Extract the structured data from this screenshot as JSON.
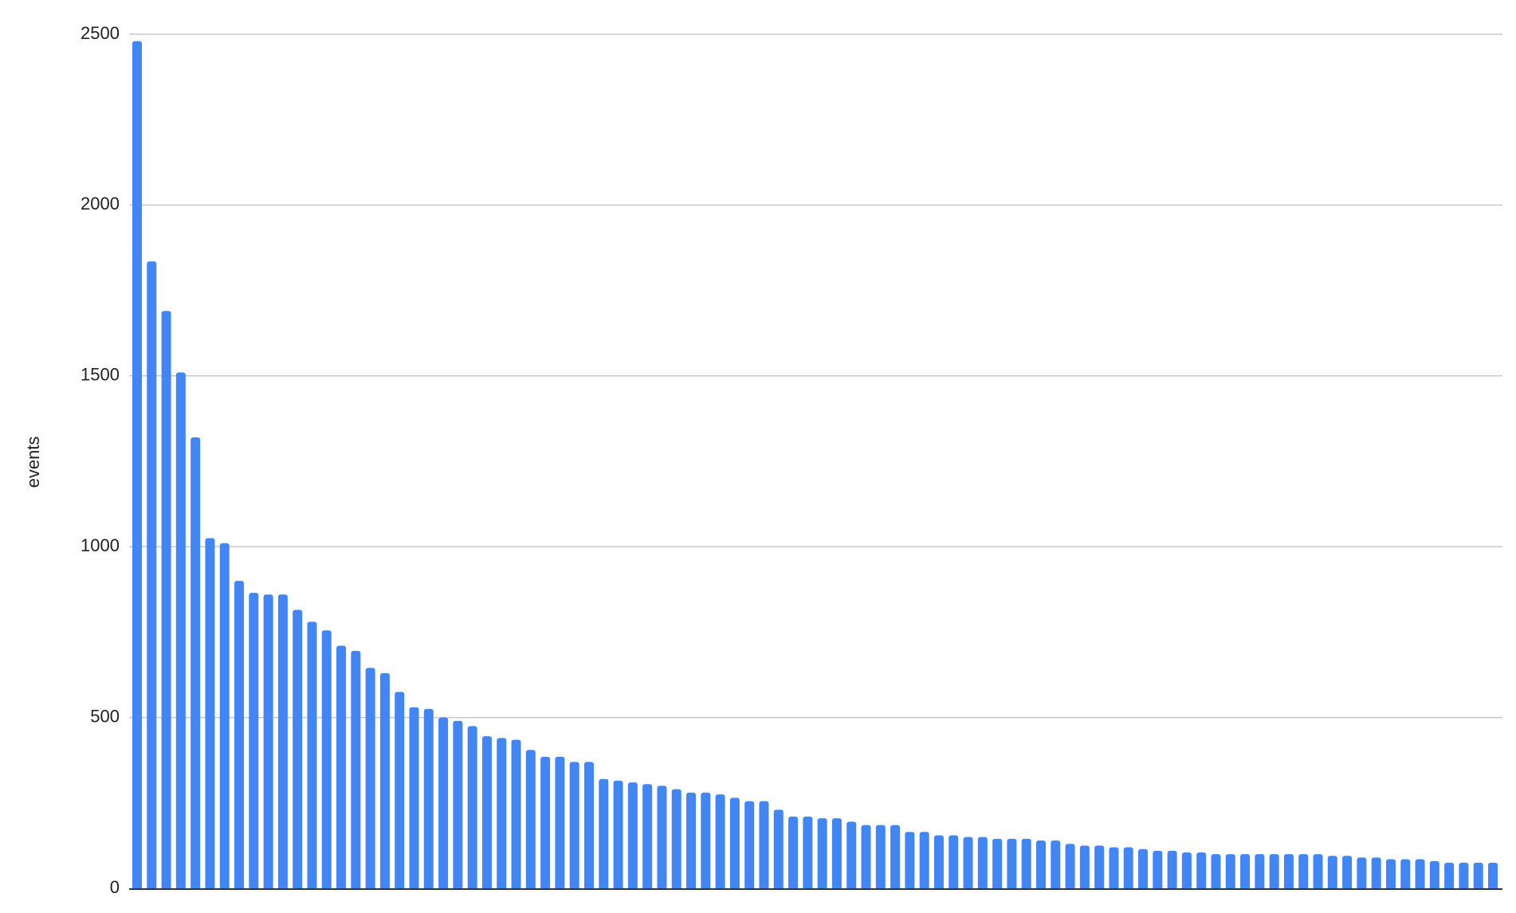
{
  "chart_data": {
    "type": "bar",
    "title": "",
    "xlabel": "",
    "ylabel": "events",
    "ylim": [
      0,
      2500
    ],
    "yticks": [
      0,
      500,
      1000,
      1500,
      2000,
      2500
    ],
    "grid": true,
    "bar_color": "#4285f4",
    "values": [
      2480,
      1835,
      1690,
      1510,
      1320,
      1025,
      1010,
      900,
      865,
      860,
      860,
      815,
      780,
      755,
      710,
      695,
      645,
      630,
      575,
      530,
      525,
      500,
      490,
      475,
      445,
      440,
      435,
      405,
      385,
      385,
      370,
      370,
      320,
      315,
      310,
      305,
      300,
      290,
      280,
      280,
      275,
      265,
      255,
      255,
      230,
      210,
      210,
      205,
      205,
      195,
      185,
      185,
      185,
      165,
      165,
      155,
      155,
      150,
      150,
      145,
      145,
      145,
      140,
      140,
      130,
      125,
      125,
      120,
      120,
      115,
      110,
      110,
      105,
      105,
      100,
      100,
      100,
      100,
      100,
      100,
      100,
      100,
      95,
      95,
      90,
      90,
      85,
      85,
      85,
      80,
      75,
      75,
      75,
      75
    ]
  }
}
